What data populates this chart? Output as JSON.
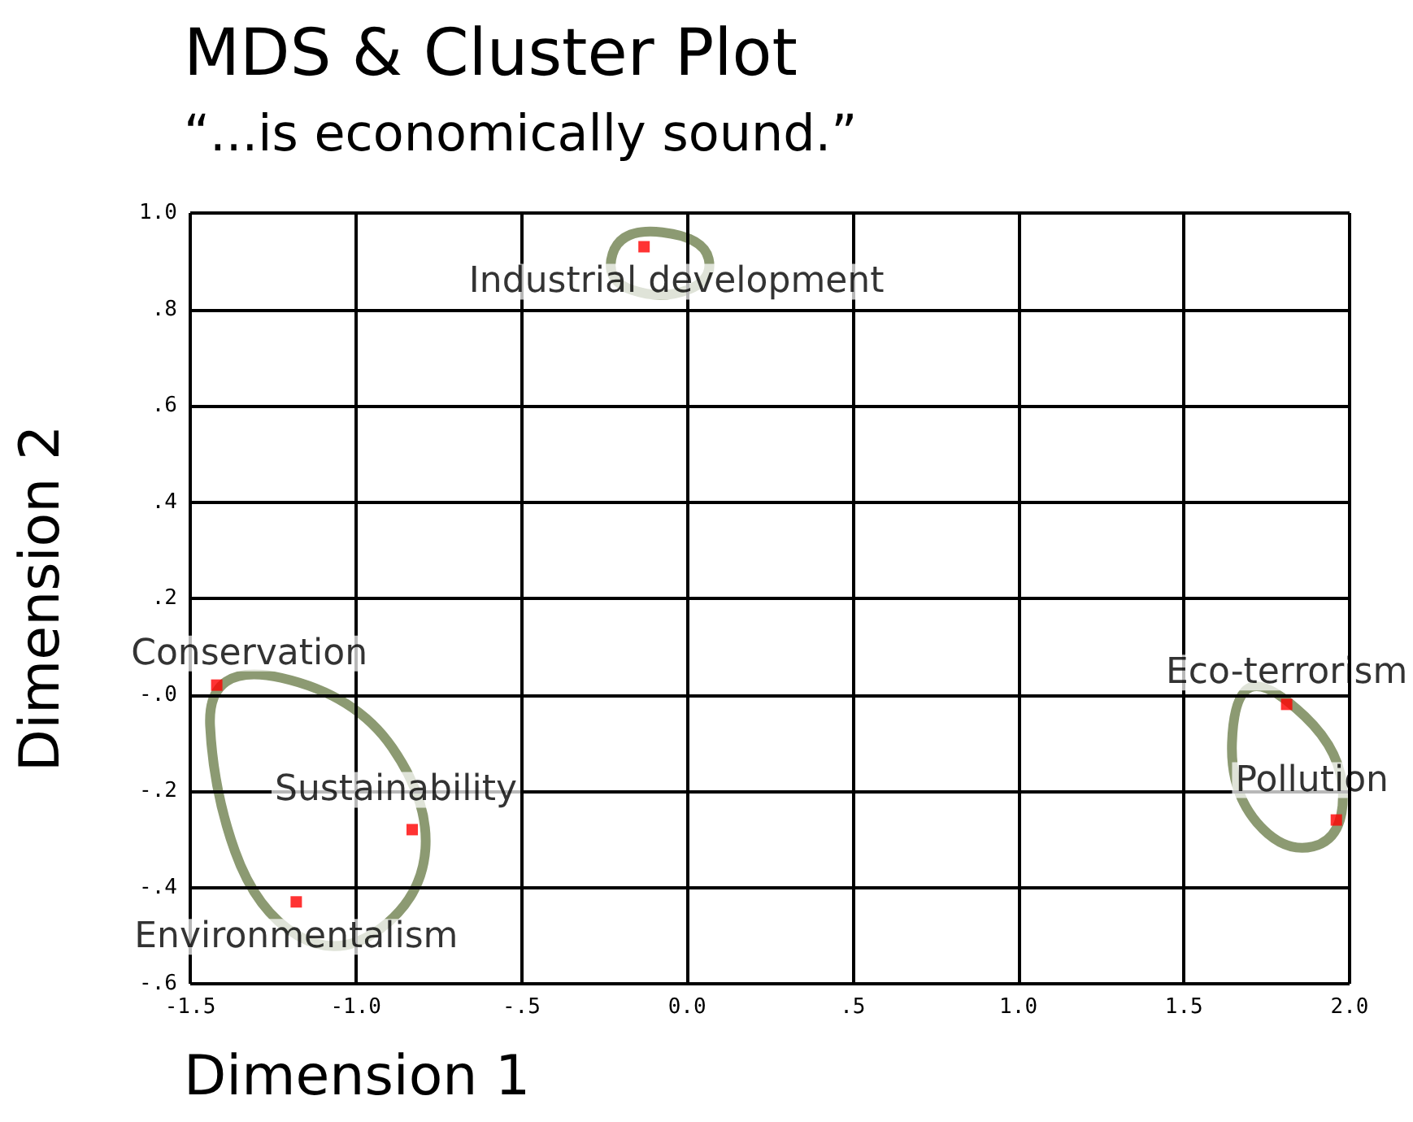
{
  "chart_data": {
    "type": "scatter",
    "title": "MDS & Cluster Plot",
    "subtitle": "“...is economically sound.”",
    "xlabel": "Dimension 1",
    "ylabel": "Dimension 2",
    "series": [
      {
        "name": "Conservation",
        "color": "#ff0000",
        "x": [
          -1.42
        ],
        "values": [
          0.02
        ]
      },
      {
        "name": "Sustainability",
        "color": "#ff0000",
        "x": [
          -0.83
        ],
        "values": [
          -0.28
        ]
      },
      {
        "name": "Environmentalism",
        "color": "#ff0000",
        "x": [
          -1.18
        ],
        "values": [
          -0.43
        ]
      },
      {
        "name": "Industrial development",
        "color": "#ff0000",
        "x": [
          -0.13
        ],
        "values": [
          0.93
        ]
      },
      {
        "name": "Eco-terrorism",
        "color": "#ff0000",
        "x": [
          1.81
        ],
        "values": [
          -0.02
        ]
      },
      {
        "name": "Pollution",
        "color": "#ff0000",
        "x": [
          1.96
        ],
        "values": [
          -0.26
        ]
      }
    ],
    "xlim": [
      -1.5,
      2.0
    ],
    "xticks": [
      {
        "value": -1.5,
        "label": "-1.5"
      },
      {
        "value": -1.0,
        "label": "-1.0"
      },
      {
        "value": -0.5,
        "label": "-.5"
      },
      {
        "value": 0,
        "label": "0.0"
      },
      {
        "value": 0.5,
        "label": ".5"
      },
      {
        "value": 1.0,
        "label": "1.0"
      },
      {
        "value": 1.5,
        "label": "1.5"
      },
      {
        "value": 2.0,
        "label": "2.0"
      }
    ],
    "ylim": [
      -0.6,
      1.0
    ],
    "yticks": [
      {
        "value": -0.6,
        "label": "-.6"
      },
      {
        "value": -0.4,
        "label": "-.4"
      },
      {
        "value": -0.2,
        "label": "-.2"
      },
      {
        "value": 0,
        "label": "-.0"
      },
      {
        "value": 0.2,
        "label": ".2"
      },
      {
        "value": 0.4,
        "label": ".4"
      },
      {
        "value": 0.6,
        "label": ".6"
      },
      {
        "value": 0.8,
        "label": ".8"
      },
      {
        "value": 1.0,
        "label": "1.0"
      }
    ],
    "grid": true,
    "legend": false,
    "marker": "square"
  }
}
